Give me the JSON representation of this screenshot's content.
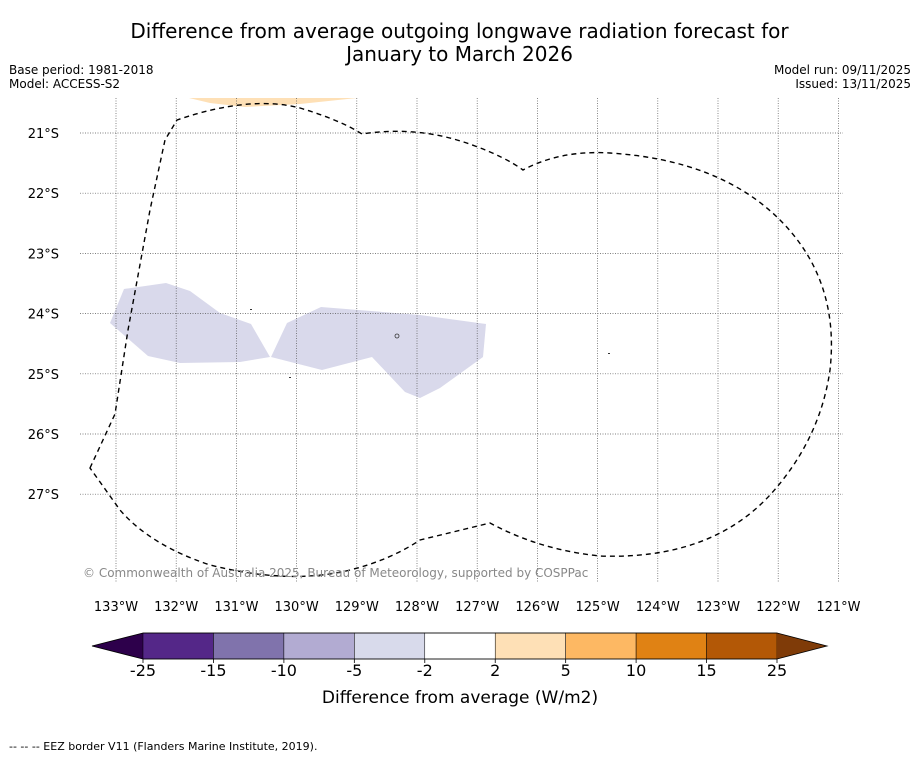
{
  "title": {
    "line1": "Difference from average outgoing longwave radiation forecast for",
    "line2": "January to March 2026"
  },
  "meta": {
    "base_period": "Base period: 1981-2018",
    "model": "Model: ACCESS-S2",
    "model_run": "Model run: 09/11/2025",
    "issued": "Issued: 13/11/2025"
  },
  "map": {
    "lat_labels": [
      "21°S",
      "22°S",
      "23°S",
      "24°S",
      "25°S",
      "26°S",
      "27°S"
    ],
    "lon_labels": [
      "133°W",
      "132°W",
      "131°W",
      "130°W",
      "129°W",
      "128°W",
      "127°W",
      "126°W",
      "125°W",
      "124°W",
      "123°W",
      "122°W",
      "121°W"
    ],
    "copyright": "© Commonwealth of Australia 2025, Bureau of Meteorology, supported by COSPPac",
    "anomaly_regions": [
      {
        "name": "western-negative-anomaly",
        "category": "-5 to -2",
        "color": "#d9d9eb"
      },
      {
        "name": "central-negative-anomaly",
        "category": "-5 to -2",
        "color": "#d9d9eb"
      },
      {
        "name": "northern-positive-anomaly",
        "category": "2 to 5",
        "color": "#fee0b6"
      }
    ]
  },
  "colorbar": {
    "ticks": [
      "-25",
      "-15",
      "-10",
      "-5",
      "-2",
      "2",
      "5",
      "10",
      "15",
      "25"
    ],
    "colors": [
      "#542788",
      "#8073ac",
      "#b2abd2",
      "#d8daeb",
      "#ffffff",
      "#fee0b6",
      "#fdb863",
      "#e08214",
      "#b35806"
    ],
    "under_color": "#2d004b",
    "over_color": "#7f3b08",
    "label": "Difference from average (W/m2)"
  },
  "footer": "--  --  -- EEZ border V11 (Flanders Marine Institute, 2019)."
}
